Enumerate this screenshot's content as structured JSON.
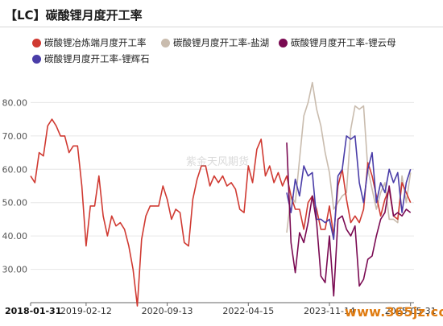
{
  "title": "【LC】碳酸锂月度开工率",
  "legend": [
    {
      "label": "碳酸锂冶炼端月度开工率",
      "color": "#d03a32"
    },
    {
      "label": "碳酸锂月度开工率-盐湖",
      "color": "#c9bcae"
    },
    {
      "label": "碳酸锂月度开工率-锂云母",
      "color": "#7a0a52"
    },
    {
      "label": "碳酸锂月度开工率-锂辉石",
      "color": "#4a3da8"
    }
  ],
  "watermark": "紫金天风期货",
  "site_watermark": "www.365jz.com",
  "chart_data": {
    "type": "line",
    "ylim": [
      20,
      90
    ],
    "y_ticks": [
      "30.00",
      "40.00",
      "50.00",
      "60.00",
      "70.00",
      "80.00"
    ],
    "x_ticks": [
      "2018-01-31",
      "2019-02-12",
      "2020-09-13",
      "2022-04-15",
      "2023-11-14",
      "2025-05-31"
    ],
    "x_tick_positions": [
      0,
      13,
      32,
      51,
      70,
      89
    ],
    "x_count": 90,
    "grid": "horizontal",
    "legend_position": "top",
    "series": [
      {
        "name": "碳酸锂冶炼端月度开工率",
        "color": "#d03a32",
        "start": 0,
        "values": [
          58,
          56,
          65,
          64,
          73,
          75,
          73,
          70,
          70,
          65,
          67,
          67,
          55,
          37,
          49,
          49,
          58,
          46,
          40,
          46,
          43,
          44,
          42,
          37,
          30,
          19,
          39,
          46,
          49,
          49,
          49,
          55,
          51,
          45,
          48,
          47,
          38,
          37,
          51,
          57,
          61,
          61,
          55,
          58,
          56,
          58,
          55,
          56,
          54,
          48,
          47,
          61,
          56,
          66,
          69,
          58,
          61,
          56,
          59,
          55,
          58,
          52,
          48,
          48,
          42,
          50,
          52,
          48,
          42,
          42,
          49,
          40,
          55,
          60,
          51,
          44,
          46,
          44,
          48,
          62,
          58,
          52,
          46,
          51,
          54,
          46,
          45,
          56,
          53,
          50
        ]
      },
      {
        "name": "碳酸锂月度开工率-盐湖",
        "color": "#c9bcae",
        "start": 60,
        "values": [
          41,
          52,
          50,
          63,
          76,
          80,
          86,
          78,
          73,
          65,
          59,
          48,
          50,
          52,
          53,
          72,
          79,
          78,
          79,
          60,
          54,
          48,
          53,
          56,
          45,
          45,
          44,
          58,
          50,
          59
        ]
      },
      {
        "name": "碳酸锂月度开工率-锂云母",
        "color": "#7a0a52",
        "start": 60,
        "values": [
          68,
          38,
          29,
          41,
          38,
          44,
          52,
          44,
          28,
          26,
          40,
          22,
          45,
          46,
          42,
          40,
          43,
          25,
          27,
          33,
          34,
          40,
          45,
          47,
          55,
          46,
          47,
          46,
          48,
          47
        ]
      },
      {
        "name": "碳酸锂月度开工率-锂辉石",
        "color": "#4a3da8",
        "start": 60,
        "values": [
          53,
          47,
          57,
          52,
          61,
          58,
          59,
          45,
          45,
          44,
          45,
          39,
          58,
          60,
          70,
          69,
          70,
          56,
          50,
          60,
          65,
          50,
          56,
          53,
          60,
          56,
          59,
          47,
          56,
          60
        ]
      }
    ]
  }
}
